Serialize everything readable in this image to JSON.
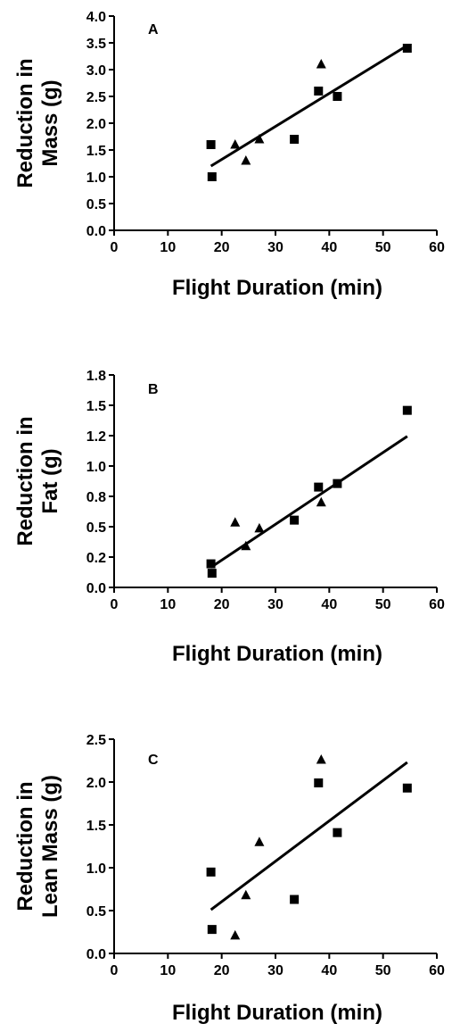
{
  "chart_data": [
    {
      "type": "scatter",
      "panel": "A",
      "xlabel": "Flight Duration (min)",
      "ylabel_lines": [
        "Reduction in",
        "Mass (g)"
      ],
      "xlim": [
        0,
        60
      ],
      "ylim": [
        0,
        4.0
      ],
      "x_ticks": [
        "0",
        "10",
        "20",
        "30",
        "40",
        "50",
        "60"
      ],
      "y_ticks": [
        "0.0",
        "0.5",
        "1.0",
        "1.5",
        "2.0",
        "2.5",
        "3.0",
        "3.5",
        "4.0"
      ],
      "grid": false,
      "series": [
        {
          "marker": "square",
          "points": [
            [
              18,
              1.6
            ],
            [
              18.2,
              1.0
            ],
            [
              33.5,
              1.7
            ],
            [
              38,
              2.6
            ],
            [
              41.5,
              2.5
            ],
            [
              54.5,
              3.4
            ]
          ]
        },
        {
          "marker": "triangle",
          "points": [
            [
              22.5,
              1.6
            ],
            [
              24.5,
              1.3
            ],
            [
              27,
              1.7
            ],
            [
              38.5,
              3.1
            ]
          ]
        }
      ],
      "fit_line": [
        [
          18,
          1.2
        ],
        [
          54.5,
          3.45
        ]
      ]
    },
    {
      "type": "scatter",
      "panel": "B",
      "xlabel": "Flight Duration (min)",
      "ylabel_lines": [
        "Reduction in",
        "Fat (g)"
      ],
      "xlim": [
        0,
        60
      ],
      "ylim": [
        0,
        1.8
      ],
      "x_ticks": [
        "0",
        "10",
        "20",
        "30",
        "40",
        "50",
        "60"
      ],
      "y_ticks": [
        "0.0",
        "0.2",
        "0.5",
        "0.8",
        "1.0",
        "1.2",
        "1.5",
        "1.8"
      ],
      "grid": false,
      "series": [
        {
          "marker": "square",
          "points": [
            [
              18,
              0.2
            ],
            [
              18.2,
              0.12
            ],
            [
              33.5,
              0.57
            ],
            [
              38,
              0.85
            ],
            [
              41.5,
              0.88
            ],
            [
              54.5,
              1.5
            ]
          ]
        },
        {
          "marker": "triangle",
          "points": [
            [
              22.5,
              0.55
            ],
            [
              24.5,
              0.35
            ],
            [
              27,
              0.5
            ],
            [
              38.5,
              0.72
            ]
          ]
        }
      ],
      "fit_line": [
        [
          18,
          0.17
        ],
        [
          54.5,
          1.28
        ]
      ]
    },
    {
      "type": "scatter",
      "panel": "C",
      "xlabel": "Flight Duration (min)",
      "ylabel_lines": [
        "Reduction in",
        "Lean Mass (g)"
      ],
      "xlim": [
        0,
        60
      ],
      "ylim": [
        0,
        2.5
      ],
      "x_ticks": [
        "0",
        "10",
        "20",
        "30",
        "40",
        "50",
        "60"
      ],
      "y_ticks": [
        "0.0",
        "0.5",
        "1.0",
        "1.5",
        "2.0",
        "2.5"
      ],
      "grid": false,
      "series": [
        {
          "marker": "square",
          "points": [
            [
              18,
              0.95
            ],
            [
              18.2,
              0.28
            ],
            [
              33.5,
              0.63
            ],
            [
              38,
              1.99
            ],
            [
              41.5,
              1.41
            ],
            [
              54.5,
              1.93
            ]
          ]
        },
        {
          "marker": "triangle",
          "points": [
            [
              22.5,
              0.21
            ],
            [
              24.5,
              0.68
            ],
            [
              27,
              1.3
            ],
            [
              38.5,
              2.26
            ]
          ]
        }
      ],
      "fit_line": [
        [
          18,
          0.51
        ],
        [
          54.5,
          2.23
        ]
      ]
    }
  ]
}
